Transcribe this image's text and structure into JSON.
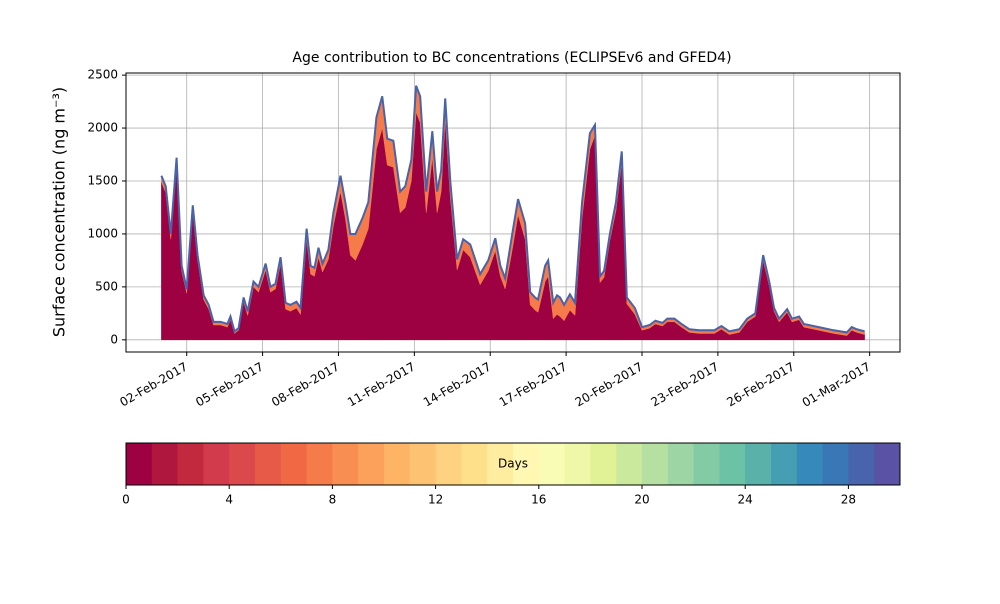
{
  "chart_data": {
    "type": "stacked-area",
    "title": "Age contribution to BC concentrations (ECLIPSEv6 and GFED4)",
    "y_label": "Surface concentration (ng m⁻³)",
    "x": [
      0,
      0.17,
      0.37,
      0.6,
      0.8,
      1.0,
      1.24,
      1.43,
      1.67,
      1.87,
      2.06,
      2.34,
      2.61,
      2.73,
      2.89,
      3.05,
      3.25,
      3.41,
      3.64,
      3.84,
      4.12,
      4.31,
      4.51,
      4.71,
      4.91,
      5.1,
      5.34,
      5.5,
      5.74,
      5.9,
      6.05,
      6.21,
      6.37,
      6.6,
      6.8,
      7.08,
      7.27,
      7.47,
      7.67,
      7.95,
      8.18,
      8.5,
      8.73,
      8.93,
      9.17,
      9.44,
      9.64,
      9.88,
      10.07,
      10.23,
      10.47,
      10.71,
      10.9,
      11.06,
      11.22,
      11.42,
      11.69,
      11.93,
      12.21,
      12.6,
      12.92,
      13.2,
      13.4,
      13.59,
      13.87,
      14.1,
      14.38,
      14.58,
      14.77,
      14.89,
      15.17,
      15.29,
      15.49,
      15.64,
      15.76,
      15.92,
      16.15,
      16.35,
      16.63,
      16.94,
      17.14,
      17.34,
      17.5,
      17.73,
      17.97,
      18.2,
      18.4,
      18.72,
      19.0,
      19.3,
      19.53,
      19.81,
      20.0,
      20.28,
      20.56,
      20.87,
      21.27,
      21.86,
      22.14,
      22.45,
      22.85,
      23.16,
      23.48,
      23.79,
      24.03,
      24.22,
      24.42,
      24.74,
      24.93,
      25.21,
      25.4,
      25.99,
      26.58,
      27.1,
      27.29,
      27.49,
      27.8
    ],
    "series": [
      {
        "color": "#9e0142",
        "values": [
          1490,
          1390,
          950,
          1650,
          650,
          440,
          1210,
          750,
          380,
          290,
          140,
          140,
          120,
          190,
          60,
          90,
          360,
          230,
          500,
          450,
          660,
          450,
          480,
          720,
          290,
          270,
          300,
          240,
          950,
          620,
          600,
          780,
          640,
          760,
          1080,
          1400,
          1150,
          800,
          750,
          900,
          1050,
          1800,
          2000,
          1650,
          1630,
          1200,
          1250,
          1500,
          2150,
          2050,
          1200,
          1720,
          1200,
          1400,
          2080,
          1350,
          660,
          850,
          780,
          520,
          650,
          840,
          600,
          480,
          850,
          1180,
          950,
          330,
          280,
          260,
          550,
          600,
          200,
          240,
          220,
          180,
          280,
          230,
          1150,
          1800,
          1930,
          540,
          590,
          940,
          1220,
          1680,
          340,
          240,
          90,
          110,
          150,
          130,
          170,
          170,
          120,
          70,
          60,
          60,
          100,
          50,
          70,
          170,
          220,
          750,
          510,
          270,
          170,
          260,
          170,
          190,
          120,
          90,
          60,
          40,
          90,
          70,
          50
        ]
      },
      {
        "color": "#f67b4a",
        "values": [
          60,
          60,
          50,
          70,
          50,
          40,
          60,
          50,
          40,
          40,
          30,
          30,
          30,
          30,
          20,
          20,
          40,
          40,
          50,
          50,
          60,
          50,
          50,
          60,
          60,
          60,
          60,
          60,
          100,
          80,
          80,
          90,
          80,
          90,
          120,
          150,
          150,
          200,
          250,
          250,
          250,
          300,
          300,
          250,
          250,
          200,
          200,
          200,
          250,
          250,
          200,
          250,
          200,
          200,
          200,
          150,
          100,
          100,
          120,
          100,
          100,
          120,
          100,
          100,
          150,
          150,
          150,
          120,
          120,
          120,
          150,
          150,
          150,
          180,
          180,
          150,
          150,
          120,
          150,
          150,
          100,
          60,
          60,
          60,
          80,
          100,
          60,
          60,
          30,
          30,
          30,
          30,
          30,
          30,
          30,
          30,
          30,
          30,
          30,
          30,
          30,
          30,
          30,
          50,
          40,
          30,
          30,
          30,
          30,
          30,
          30,
          30,
          30,
          30,
          30,
          30,
          30
        ]
      }
    ],
    "outline_color": "#4a62a8",
    "xlim": [
      -1.4,
      29.2
    ],
    "xticks": [
      {
        "value": 1,
        "label": "02-Feb-2017"
      },
      {
        "value": 4,
        "label": "05-Feb-2017"
      },
      {
        "value": 7,
        "label": "08-Feb-2017"
      },
      {
        "value": 10,
        "label": "11-Feb-2017"
      },
      {
        "value": 13,
        "label": "14-Feb-2017"
      },
      {
        "value": 16,
        "label": "17-Feb-2017"
      },
      {
        "value": 19,
        "label": "20-Feb-2017"
      },
      {
        "value": 22,
        "label": "23-Feb-2017"
      },
      {
        "value": 25,
        "label": "26-Feb-2017"
      },
      {
        "value": 28,
        "label": "01-Mar-2017"
      }
    ],
    "ylim": [
      -115,
      2520
    ],
    "yticks": [
      0,
      500,
      1000,
      1500,
      2000,
      2500
    ],
    "grid": true,
    "colorbar": {
      "label": "Days",
      "lim": [
        0,
        30
      ],
      "ticks": [
        0,
        4,
        8,
        12,
        16,
        20,
        24,
        28
      ],
      "colors": [
        "#9e0142",
        "#b0173f",
        "#c2283e",
        "#d13b4b",
        "#dc494c",
        "#e75a47",
        "#f06944",
        "#f67b4a",
        "#f98e52",
        "#fca15c",
        "#fdb465",
        "#fdc372",
        "#fed281",
        "#fee08b",
        "#feec9f",
        "#fff7b2",
        "#f8fcb4",
        "#eef8a8",
        "#e0f295",
        "#cbe99d",
        "#b6e0a2",
        "#9dd5a4",
        "#83cba4",
        "#6bc2a5",
        "#59b1aa",
        "#469eb2",
        "#368abb",
        "#3a77b6",
        "#4864ac",
        "#5a52a4"
      ]
    }
  }
}
